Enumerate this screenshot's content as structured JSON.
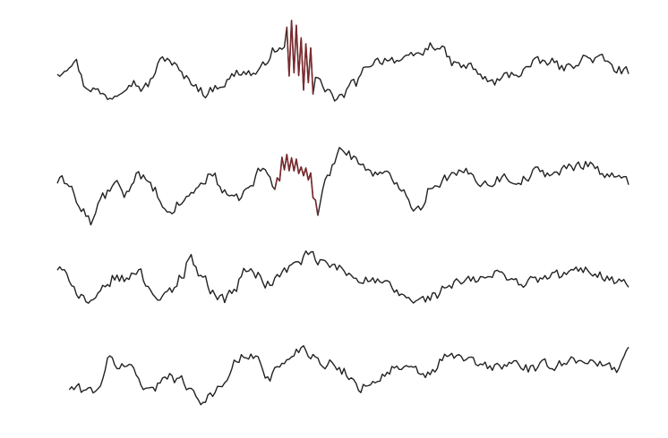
{
  "chart_data": {
    "type": "line",
    "title": "",
    "xlabel": "",
    "ylabel": "",
    "axes_visible": false,
    "grid": false,
    "legend": "none",
    "colors": {
      "trace": "#222222",
      "highlight": "#7a2a2e"
    },
    "samples_per_trace": 240,
    "traces": [
      {
        "start_sample": 0,
        "waypoints": [
          [
            0,
            -0.15
          ],
          [
            0.03,
            0.08
          ],
          [
            0.05,
            -0.42
          ],
          [
            0.09,
            -0.62
          ],
          [
            0.13,
            -0.32
          ],
          [
            0.15,
            -0.46
          ],
          [
            0.19,
            0.12
          ],
          [
            0.23,
            -0.3
          ],
          [
            0.26,
            -0.55
          ],
          [
            0.29,
            -0.36
          ],
          [
            0.32,
            -0.14
          ],
          [
            0.35,
            -0.18
          ],
          [
            0.38,
            0.28
          ],
          [
            0.42,
            0.22
          ],
          [
            0.44,
            -0.1
          ],
          [
            0.47,
            -0.46
          ],
          [
            0.49,
            -0.7
          ],
          [
            0.52,
            -0.38
          ],
          [
            0.55,
            0.05
          ],
          [
            0.58,
            0.12
          ],
          [
            0.61,
            0.06
          ],
          [
            0.63,
            0.18
          ],
          [
            0.66,
            0.38
          ],
          [
            0.7,
            -0.02
          ],
          [
            0.72,
            -0.05
          ],
          [
            0.76,
            -0.35
          ],
          [
            0.8,
            -0.18
          ],
          [
            0.84,
            0.02
          ],
          [
            0.86,
            0.05
          ],
          [
            0.89,
            -0.08
          ],
          [
            0.92,
            0.12
          ],
          [
            0.95,
            0.1
          ],
          [
            0.98,
            -0.1
          ],
          [
            1.0,
            -0.15
          ]
        ],
        "highlight": {
          "from": 0.4,
          "to": 0.45,
          "burst": 0.55
        }
      },
      {
        "start_sample": 0,
        "waypoints": [
          [
            0,
            -0.05
          ],
          [
            0.02,
            -0.05
          ],
          [
            0.04,
            -0.55
          ],
          [
            0.06,
            -0.78
          ],
          [
            0.08,
            -0.32
          ],
          [
            0.1,
            -0.12
          ],
          [
            0.12,
            -0.28
          ],
          [
            0.14,
            0.12
          ],
          [
            0.17,
            -0.22
          ],
          [
            0.19,
            -0.66
          ],
          [
            0.22,
            -0.42
          ],
          [
            0.24,
            -0.2
          ],
          [
            0.27,
            0.08
          ],
          [
            0.29,
            -0.18
          ],
          [
            0.31,
            -0.42
          ],
          [
            0.33,
            -0.22
          ],
          [
            0.36,
            0.18
          ],
          [
            0.38,
            -0.1
          ],
          [
            0.4,
            0.28
          ],
          [
            0.42,
            0.2
          ],
          [
            0.44,
            0.08
          ],
          [
            0.455,
            -0.62
          ],
          [
            0.47,
            0.1
          ],
          [
            0.5,
            0.52
          ],
          [
            0.52,
            0.4
          ],
          [
            0.54,
            0.18
          ],
          [
            0.57,
            0.06
          ],
          [
            0.6,
            -0.1
          ],
          [
            0.63,
            -0.55
          ],
          [
            0.66,
            -0.08
          ],
          [
            0.69,
            0.05
          ],
          [
            0.72,
            0.1
          ],
          [
            0.75,
            -0.08
          ],
          [
            0.78,
            0.02
          ],
          [
            0.81,
            -0.02
          ],
          [
            0.84,
            0.12
          ],
          [
            0.87,
            0.1
          ],
          [
            0.9,
            0.2
          ],
          [
            0.93,
            0.3
          ],
          [
            0.96,
            0.08
          ],
          [
            0.98,
            0.0
          ],
          [
            1.0,
            -0.05
          ]
        ],
        "highlight": {
          "from": 0.38,
          "to": 0.46,
          "burst": 0.16
        }
      },
      {
        "start_sample": 0,
        "waypoints": [
          [
            0,
            0.18
          ],
          [
            0.02,
            0.02
          ],
          [
            0.04,
            -0.28
          ],
          [
            0.06,
            -0.48
          ],
          [
            0.08,
            -0.22
          ],
          [
            0.1,
            0.02
          ],
          [
            0.12,
            -0.02
          ],
          [
            0.14,
            0.18
          ],
          [
            0.16,
            -0.12
          ],
          [
            0.18,
            -0.4
          ],
          [
            0.2,
            -0.22
          ],
          [
            0.22,
            0.1
          ],
          [
            0.23,
            0.42
          ],
          [
            0.25,
            0.1
          ],
          [
            0.27,
            -0.18
          ],
          [
            0.29,
            -0.38
          ],
          [
            0.31,
            -0.2
          ],
          [
            0.33,
            0.18
          ],
          [
            0.35,
            0.05
          ],
          [
            0.37,
            -0.1
          ],
          [
            0.39,
            0.08
          ],
          [
            0.41,
            0.22
          ],
          [
            0.44,
            0.42
          ],
          [
            0.46,
            0.3
          ],
          [
            0.49,
            0.2
          ],
          [
            0.51,
            0.08
          ],
          [
            0.54,
            0.0
          ],
          [
            0.57,
            -0.1
          ],
          [
            0.6,
            -0.28
          ],
          [
            0.63,
            -0.42
          ],
          [
            0.66,
            -0.3
          ],
          [
            0.69,
            -0.1
          ],
          [
            0.72,
            -0.05
          ],
          [
            0.75,
            0.02
          ],
          [
            0.78,
            0.1
          ],
          [
            0.81,
            -0.08
          ],
          [
            0.84,
            -0.02
          ],
          [
            0.87,
            0.05
          ],
          [
            0.9,
            0.12
          ],
          [
            0.93,
            0.16
          ],
          [
            0.96,
            0.05
          ],
          [
            0.98,
            -0.05
          ],
          [
            1.0,
            -0.1
          ]
        ],
        "highlight": null
      },
      {
        "start_sample": 5,
        "waypoints": [
          [
            0,
            -0.4
          ],
          [
            0.03,
            -0.38
          ],
          [
            0.06,
            -0.42
          ],
          [
            0.08,
            -0.25
          ],
          [
            0.09,
            0.16
          ],
          [
            0.11,
            0.05
          ],
          [
            0.13,
            0.02
          ],
          [
            0.15,
            -0.3
          ],
          [
            0.17,
            -0.42
          ],
          [
            0.19,
            -0.08
          ],
          [
            0.21,
            -0.2
          ],
          [
            0.23,
            -0.32
          ],
          [
            0.25,
            -0.6
          ],
          [
            0.27,
            -0.48
          ],
          [
            0.29,
            -0.36
          ],
          [
            0.31,
            0.12
          ],
          [
            0.33,
            0.22
          ],
          [
            0.35,
            0.18
          ],
          [
            0.37,
            -0.15
          ],
          [
            0.39,
            0.02
          ],
          [
            0.41,
            0.25
          ],
          [
            0.43,
            0.4
          ],
          [
            0.45,
            0.22
          ],
          [
            0.47,
            0.1
          ],
          [
            0.5,
            -0.05
          ],
          [
            0.53,
            -0.35
          ],
          [
            0.56,
            -0.2
          ],
          [
            0.59,
            0.0
          ],
          [
            0.62,
            -0.05
          ],
          [
            0.65,
            -0.12
          ],
          [
            0.68,
            0.2
          ],
          [
            0.71,
            0.2
          ],
          [
            0.74,
            0.05
          ],
          [
            0.77,
            0.02
          ],
          [
            0.8,
            0.1
          ],
          [
            0.83,
            -0.02
          ],
          [
            0.86,
            0.05
          ],
          [
            0.89,
            0.12
          ],
          [
            0.92,
            0.18
          ],
          [
            0.95,
            0.05
          ],
          [
            0.98,
            0.0
          ],
          [
            1.0,
            0.4
          ]
        ],
        "highlight": null
      }
    ]
  }
}
